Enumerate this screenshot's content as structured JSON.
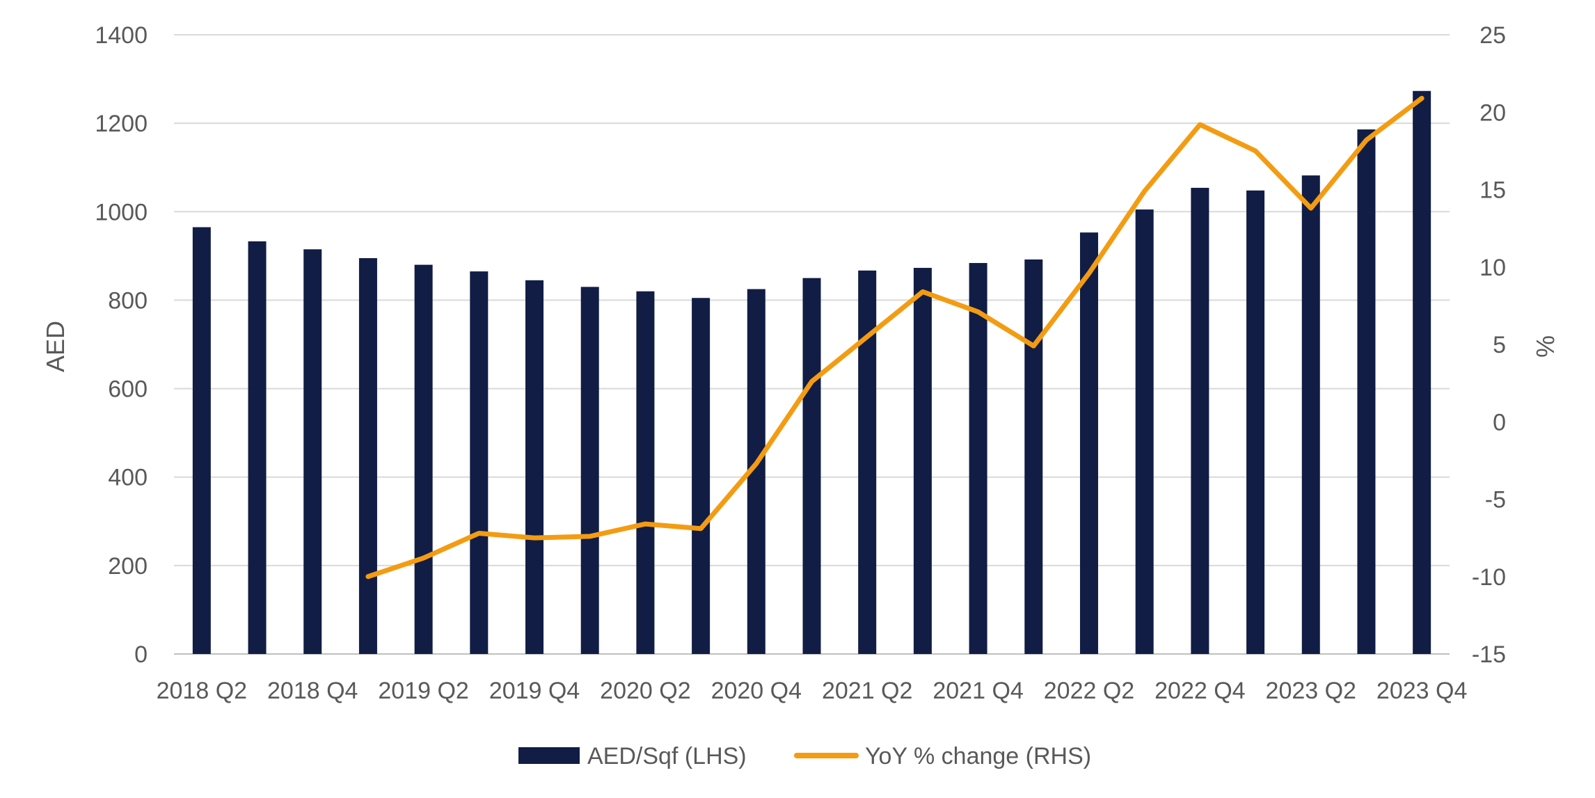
{
  "chart_data": {
    "type": "bar",
    "categories": [
      "2018 Q2",
      "2018 Q3",
      "2018 Q4",
      "2019 Q1",
      "2019 Q2",
      "2019 Q3",
      "2019 Q4",
      "2020 Q1",
      "2020 Q2",
      "2020 Q3",
      "2020 Q4",
      "2021 Q1",
      "2021 Q2",
      "2021 Q3",
      "2021 Q4",
      "2022 Q1",
      "2022 Q2",
      "2022 Q3",
      "2022 Q4",
      "2023 Q1",
      "2023 Q2",
      "2023 Q3",
      "2023 Q4"
    ],
    "x_tick_labels": [
      "2018 Q2",
      "2018 Q4",
      "2019 Q2",
      "2019 Q4",
      "2020 Q2",
      "2020 Q4",
      "2021 Q2",
      "2021 Q4",
      "2022 Q2",
      "2022 Q4",
      "2023 Q2",
      "2023 Q4"
    ],
    "series": [
      {
        "name": "AED/Sqf (LHS)",
        "type": "bar",
        "axis": "left",
        "color": "#111d45",
        "values": [
          965,
          933,
          915,
          895,
          880,
          865,
          845,
          830,
          820,
          805,
          825,
          850,
          867,
          873,
          884,
          892,
          953,
          1005,
          1054,
          1048,
          1082,
          1186,
          1273
        ]
      },
      {
        "name": "YoY % change (RHS)",
        "type": "line",
        "axis": "right",
        "color": "#f39c12",
        "values": [
          null,
          null,
          null,
          -10.0,
          -8.8,
          -7.2,
          -7.5,
          -7.4,
          -6.6,
          -6.9,
          -2.7,
          2.6,
          5.5,
          8.4,
          7.1,
          4.9,
          9.6,
          14.9,
          19.2,
          17.5,
          13.8,
          18.2,
          20.9
        ]
      }
    ],
    "ylabel_left": "AED",
    "ylabel_right": "%",
    "ylim_left": [
      0,
      1400
    ],
    "ylim_right": [
      -15,
      25
    ],
    "yticks_left": [
      "0",
      "200",
      "400",
      "600",
      "800",
      "1000",
      "1200",
      "1400"
    ],
    "yticks_right": [
      "-15",
      "-10",
      "-5",
      "0",
      "5",
      "10",
      "15",
      "20",
      "25"
    ],
    "grid": true,
    "legend_position": "bottom"
  }
}
